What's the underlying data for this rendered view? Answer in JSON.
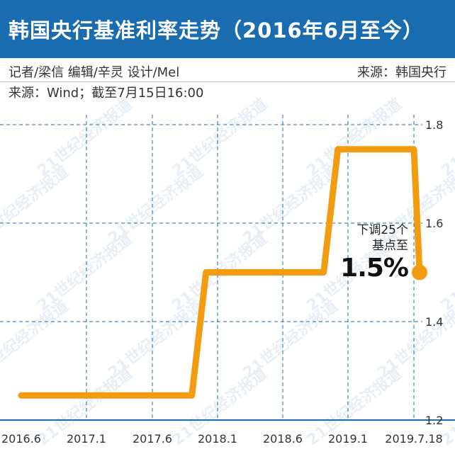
{
  "title": "韩国央行基准利率走势（2016年6月至今）",
  "credits": {
    "left": "记者/梁信  编辑/辛灵  设计/Mel",
    "right": "来源：韩国央行"
  },
  "source_note": "来源：Wind；截至7月15日16:00",
  "watermark": "21世纪经济报道",
  "colors": {
    "title_bg": "#1a6cb0",
    "line": "#f39c12",
    "grid": "#1a6cb0",
    "baseline": "#1a6cb0"
  },
  "chart_data": {
    "type": "line",
    "title": "",
    "xlabel": "",
    "ylabel": "",
    "x_ticks": [
      "2016.6",
      "2017.1",
      "2017.6",
      "2018.1",
      "2018.6",
      "2019.1",
      "2019.7.18"
    ],
    "y_ticks": [
      1.2,
      1.4,
      1.6,
      1.8
    ],
    "ylim": [
      1.2,
      1.8
    ],
    "grid": true,
    "series": [
      {
        "values": [
          {
            "x": "2016.6",
            "y": 1.25
          },
          {
            "x": "2017.11",
            "y": 1.25
          },
          {
            "x": "2017.11",
            "y": 1.5
          },
          {
            "x": "2018.11",
            "y": 1.5
          },
          {
            "x": "2018.11",
            "y": 1.75
          },
          {
            "x": "2019.7.18",
            "y": 1.75
          },
          {
            "x": "2019.7.18",
            "y": 1.5
          }
        ]
      }
    ],
    "annotation": {
      "line1": "下调25个",
      "line2": "基点至",
      "value": "1.5%"
    }
  }
}
